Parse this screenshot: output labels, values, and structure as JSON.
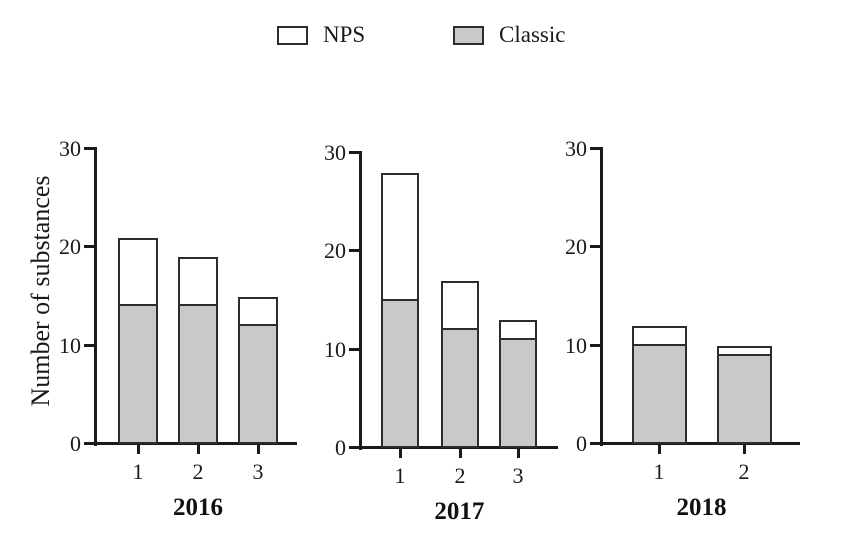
{
  "colors": {
    "nps_fill": "#ffffff",
    "classic_fill": "#c9c9c9",
    "bar_border": "#2d2d2d",
    "axis": "#1a1a1a",
    "text": "#1a1a1a"
  },
  "chart_data": {
    "type": "bar",
    "stacked": true,
    "title": "",
    "ylabel": "Number of substances",
    "xlabel": "",
    "ylim": [
      0,
      30
    ],
    "yticks": [
      0,
      10,
      20,
      30
    ],
    "grid": false,
    "legend_position": "top-center",
    "legend": [
      {
        "label": "NPS",
        "fill": "#ffffff"
      },
      {
        "label": "Classic",
        "fill": "#c9c9c9"
      }
    ],
    "panels": [
      {
        "year": "2016",
        "categories": [
          "1",
          "2",
          "3"
        ],
        "series": [
          {
            "name": "Classic",
            "values": [
              14,
              14,
              12
            ]
          },
          {
            "name": "NPS",
            "values": [
              7,
              5,
              3
            ]
          }
        ],
        "totals": [
          21,
          19,
          15
        ]
      },
      {
        "year": "2017",
        "categories": [
          "1",
          "2",
          "3"
        ],
        "series": [
          {
            "name": "Classic",
            "values": [
              15,
              12,
              11
            ]
          },
          {
            "name": "NPS",
            "values": [
              13,
              5,
              2
            ]
          }
        ],
        "totals": [
          28,
          17,
          13
        ]
      },
      {
        "year": "2018",
        "categories": [
          "1",
          "2"
        ],
        "series": [
          {
            "name": "Classic",
            "values": [
              10,
              9
            ]
          },
          {
            "name": "NPS",
            "values": [
              2,
              1
            ]
          }
        ],
        "totals": [
          12,
          10
        ]
      }
    ]
  }
}
